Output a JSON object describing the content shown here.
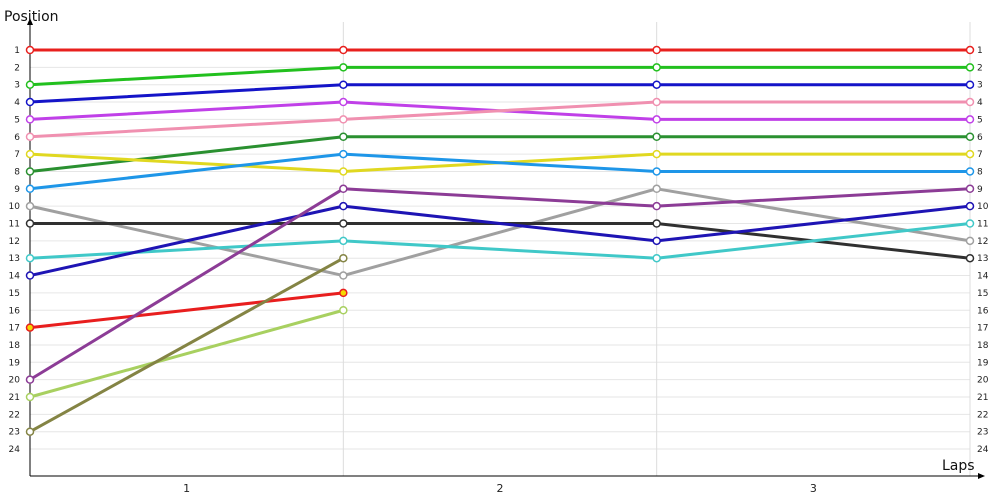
{
  "chart_data": {
    "type": "line",
    "ylabel": "Position",
    "xlabel": "Laps",
    "x_positions": [
      0,
      1,
      2,
      3
    ],
    "x_tick_labels": [
      "1",
      "2",
      "3"
    ],
    "y_tick_labels": [
      "1",
      "2",
      "3",
      "4",
      "5",
      "6",
      "7",
      "8",
      "9",
      "10",
      "11",
      "12",
      "13",
      "14",
      "15",
      "16",
      "17",
      "18",
      "19",
      "20",
      "21",
      "22",
      "23",
      "24"
    ],
    "ylim": [
      1,
      24
    ],
    "y_inverted": true,
    "grid": true,
    "series": [
      {
        "color": "#e8201e",
        "values": [
          1,
          1,
          1,
          1
        ]
      },
      {
        "color": "#22c01e",
        "values": [
          3,
          2,
          2,
          2
        ]
      },
      {
        "color": "#1414c8",
        "values": [
          4,
          3,
          3,
          3
        ]
      },
      {
        "color": "#c040e8",
        "values": [
          5,
          4,
          5,
          5
        ]
      },
      {
        "color": "#f090b0",
        "values": [
          6,
          5,
          4,
          4
        ]
      },
      {
        "color": "#2a9030",
        "values": [
          8,
          6,
          6,
          6
        ]
      },
      {
        "color": "#e0d820",
        "values": [
          7,
          8,
          7,
          7
        ]
      },
      {
        "color": "#1e96e8",
        "values": [
          9,
          7,
          8,
          8
        ]
      },
      {
        "color": "#a0a0a0",
        "values": [
          10,
          14,
          9,
          12
        ]
      },
      {
        "color": "#303030",
        "values": [
          11,
          11,
          11,
          13
        ]
      },
      {
        "color": "#40c8c8",
        "values": [
          13,
          12,
          13,
          11
        ]
      },
      {
        "color": "#1e14b4",
        "values": [
          14,
          10,
          12,
          10
        ]
      },
      {
        "color": "#e81e1e",
        "marker_fill": "#f5d800",
        "values": [
          17,
          15,
          null,
          null
        ]
      },
      {
        "color": "#8c3c96",
        "values": [
          20,
          9,
          10,
          9
        ]
      },
      {
        "color": "#a8d060",
        "values": [
          21,
          16,
          null,
          null
        ]
      },
      {
        "color": "#848444",
        "values": [
          23,
          13,
          null,
          null
        ]
      }
    ]
  }
}
